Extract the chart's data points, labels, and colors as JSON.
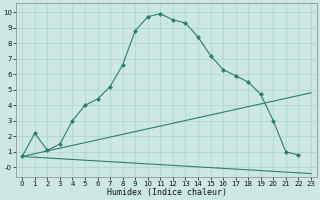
{
  "xlabel": "Humidex (Indice chaleur)",
  "bg_color": "#cde8e2",
  "grid_color": "#aad4cc",
  "line_color": "#2e7d6e",
  "xlim": [
    -0.5,
    23.5
  ],
  "ylim": [
    -0.6,
    10.6
  ],
  "xticks": [
    0,
    1,
    2,
    3,
    4,
    5,
    6,
    7,
    8,
    9,
    10,
    11,
    12,
    13,
    14,
    15,
    16,
    17,
    18,
    19,
    20,
    21,
    22,
    23
  ],
  "yticks": [
    0,
    1,
    2,
    3,
    4,
    5,
    6,
    7,
    8,
    9,
    10
  ],
  "curve1_x": [
    0,
    1,
    2,
    3,
    4,
    5,
    6,
    7,
    8,
    9,
    10,
    11,
    12,
    13,
    14,
    15,
    16,
    17,
    18,
    19,
    20,
    21,
    22
  ],
  "curve1_y": [
    0.7,
    2.2,
    1.1,
    1.5,
    3.0,
    4.0,
    4.4,
    5.2,
    6.6,
    8.8,
    9.7,
    9.9,
    9.5,
    9.3,
    8.4,
    7.2,
    6.3,
    5.9,
    5.5,
    4.7,
    3.0,
    1.0,
    0.8
  ],
  "curve2_x": [
    0,
    23
  ],
  "curve2_y": [
    0.7,
    4.8
  ],
  "curve3_x": [
    0,
    23
  ],
  "curve3_y": [
    0.7,
    -0.4
  ],
  "xlabel_fontsize": 6,
  "tick_fontsize": 5
}
